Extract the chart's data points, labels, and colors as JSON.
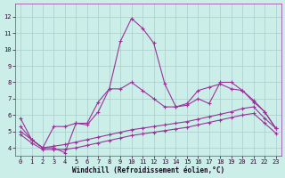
{
  "xlabel": "Windchill (Refroidissement éolien,°C)",
  "bg_color": "#cceee8",
  "grid_color": "#aacccc",
  "line_color": "#993399",
  "x_ticks": [
    0,
    1,
    2,
    3,
    4,
    5,
    6,
    7,
    8,
    9,
    10,
    11,
    12,
    13,
    14,
    15,
    16,
    17,
    18,
    19,
    20,
    21,
    22,
    23
  ],
  "y_ticks": [
    4,
    5,
    6,
    7,
    8,
    9,
    10,
    11,
    12
  ],
  "ylim": [
    3.5,
    12.8
  ],
  "xlim": [
    -0.5,
    23.5
  ],
  "series1_x": [
    0,
    1,
    2,
    3,
    4,
    5,
    6,
    7,
    8,
    9,
    10,
    11,
    12,
    13,
    14,
    15,
    16,
    17,
    18,
    19,
    20,
    21,
    22,
    23
  ],
  "series1_y": [
    5.8,
    4.5,
    4.0,
    4.0,
    3.7,
    5.5,
    5.5,
    6.8,
    7.6,
    10.5,
    11.9,
    11.3,
    10.4,
    7.9,
    6.5,
    6.6,
    7.0,
    6.7,
    8.0,
    8.0,
    7.5,
    6.9,
    6.2,
    5.2
  ],
  "series2_x": [
    0,
    1,
    2,
    3,
    4,
    5,
    6,
    7,
    8,
    9,
    10,
    11,
    12,
    13,
    14,
    15,
    16,
    17,
    18,
    19,
    20,
    21,
    22,
    23
  ],
  "series2_y": [
    5.3,
    4.5,
    4.0,
    5.3,
    5.3,
    5.5,
    5.4,
    6.2,
    7.6,
    7.6,
    8.0,
    7.5,
    7.0,
    6.5,
    6.5,
    6.7,
    7.5,
    7.7,
    7.9,
    7.6,
    7.5,
    6.8,
    6.2,
    5.2
  ],
  "series3_x": [
    0,
    1,
    2,
    3,
    4,
    5,
    6,
    7,
    8,
    9,
    10,
    11,
    12,
    13,
    14,
    15,
    16,
    17,
    18,
    19,
    20,
    21,
    22,
    23
  ],
  "series3_y": [
    5.0,
    4.5,
    4.0,
    4.1,
    4.2,
    4.35,
    4.5,
    4.65,
    4.8,
    4.95,
    5.1,
    5.2,
    5.3,
    5.4,
    5.5,
    5.6,
    5.75,
    5.9,
    6.05,
    6.2,
    6.4,
    6.5,
    5.8,
    5.2
  ],
  "series4_x": [
    0,
    1,
    2,
    3,
    4,
    5,
    6,
    7,
    8,
    9,
    10,
    11,
    12,
    13,
    14,
    15,
    16,
    17,
    18,
    19,
    20,
    21,
    22,
    23
  ],
  "series4_y": [
    4.8,
    4.3,
    3.9,
    3.9,
    3.9,
    4.0,
    4.15,
    4.3,
    4.45,
    4.6,
    4.75,
    4.85,
    4.95,
    5.05,
    5.15,
    5.25,
    5.4,
    5.55,
    5.7,
    5.85,
    6.0,
    6.1,
    5.5,
    4.9
  ]
}
